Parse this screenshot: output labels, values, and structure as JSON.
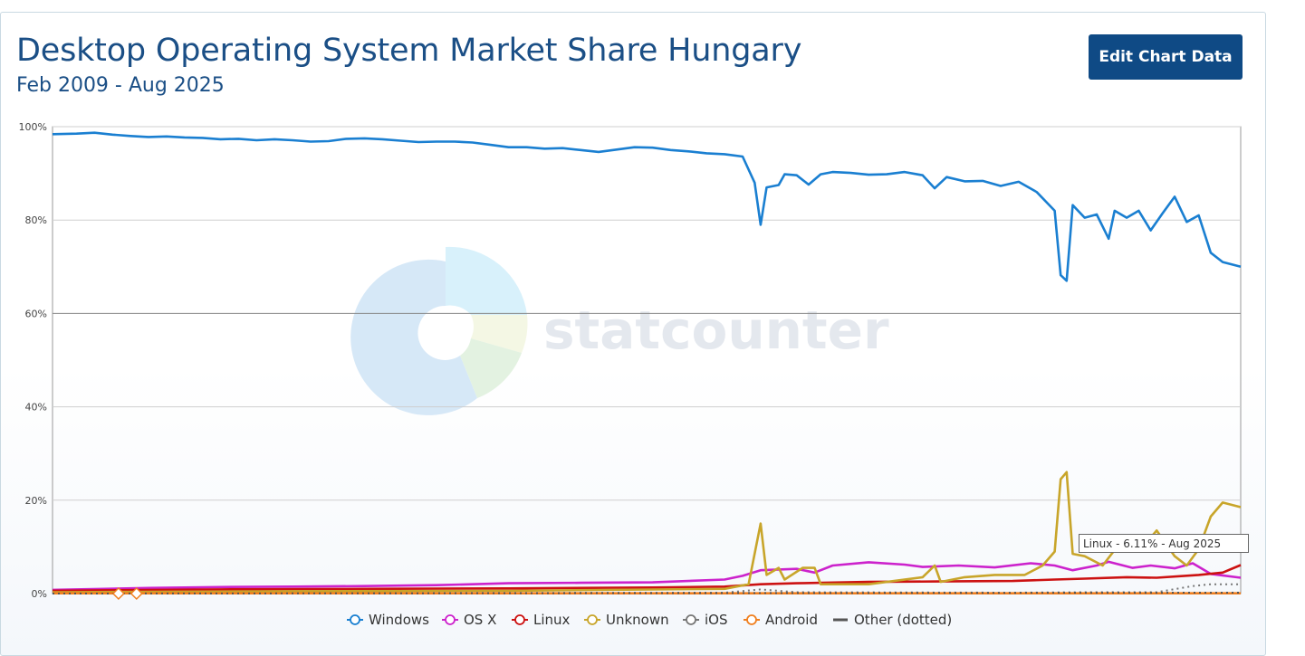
{
  "header": {
    "title": "Desktop Operating System Market Share Hungary",
    "subtitle": "Feb 2009 - Aug 2025",
    "edit_button_label": "Edit Chart Data"
  },
  "watermark": {
    "text": "statcounter"
  },
  "tooltip": {
    "text": "Linux - 6.11% - Aug 2025"
  },
  "chart_data": {
    "type": "line",
    "title": "Desktop Operating System Market Share Hungary",
    "subtitle": "Feb 2009 - Aug 2025",
    "x_range": [
      "2009-02",
      "2025-08"
    ],
    "ylim": [
      0,
      100
    ],
    "y_ticks": [
      "0%",
      "20%",
      "40%",
      "60%",
      "80%",
      "100%"
    ],
    "y_tick_values": [
      0,
      20,
      40,
      60,
      80,
      100
    ],
    "grid": "horizontal",
    "legend_position": "bottom",
    "series": [
      {
        "name": "Windows",
        "color": "#1a7fd1",
        "style": "solid",
        "points": [
          [
            "2009-02",
            98.4
          ],
          [
            "2009-06",
            98.5
          ],
          [
            "2009-09",
            98.7
          ],
          [
            "2009-12",
            98.3
          ],
          [
            "2010-03",
            98.0
          ],
          [
            "2010-06",
            97.8
          ],
          [
            "2010-09",
            97.9
          ],
          [
            "2010-12",
            97.7
          ],
          [
            "2011-03",
            97.6
          ],
          [
            "2011-06",
            97.3
          ],
          [
            "2011-09",
            97.4
          ],
          [
            "2011-12",
            97.1
          ],
          [
            "2012-03",
            97.3
          ],
          [
            "2012-06",
            97.1
          ],
          [
            "2012-09",
            96.8
          ],
          [
            "2012-12",
            96.9
          ],
          [
            "2013-03",
            97.4
          ],
          [
            "2013-06",
            97.5
          ],
          [
            "2013-09",
            97.3
          ],
          [
            "2013-12",
            97.0
          ],
          [
            "2014-03",
            96.7
          ],
          [
            "2014-06",
            96.8
          ],
          [
            "2014-09",
            96.8
          ],
          [
            "2014-12",
            96.6
          ],
          [
            "2015-03",
            96.1
          ],
          [
            "2015-06",
            95.6
          ],
          [
            "2015-09",
            95.6
          ],
          [
            "2015-12",
            95.3
          ],
          [
            "2016-03",
            95.4
          ],
          [
            "2016-06",
            95.0
          ],
          [
            "2016-09",
            94.6
          ],
          [
            "2016-12",
            95.1
          ],
          [
            "2017-03",
            95.6
          ],
          [
            "2017-06",
            95.5
          ],
          [
            "2017-09",
            95.0
          ],
          [
            "2017-12",
            94.7
          ],
          [
            "2018-03",
            94.3
          ],
          [
            "2018-06",
            94.1
          ],
          [
            "2018-09",
            93.6
          ],
          [
            "2018-11",
            88.0
          ],
          [
            "2018-12",
            79.0
          ],
          [
            "2019-01",
            87.0
          ],
          [
            "2019-03",
            87.5
          ],
          [
            "2019-04",
            89.8
          ],
          [
            "2019-06",
            89.6
          ],
          [
            "2019-08",
            87.6
          ],
          [
            "2019-10",
            89.8
          ],
          [
            "2019-12",
            90.3
          ],
          [
            "2020-03",
            90.1
          ],
          [
            "2020-06",
            89.7
          ],
          [
            "2020-09",
            89.8
          ],
          [
            "2020-12",
            90.3
          ],
          [
            "2021-03",
            89.6
          ],
          [
            "2021-05",
            86.8
          ],
          [
            "2021-07",
            89.2
          ],
          [
            "2021-10",
            88.3
          ],
          [
            "2022-01",
            88.4
          ],
          [
            "2022-04",
            87.3
          ],
          [
            "2022-07",
            88.2
          ],
          [
            "2022-10",
            86.0
          ],
          [
            "2023-01",
            82.0
          ],
          [
            "2023-02",
            68.2
          ],
          [
            "2023-03",
            67.0
          ],
          [
            "2023-04",
            83.2
          ],
          [
            "2023-06",
            80.5
          ],
          [
            "2023-08",
            81.2
          ],
          [
            "2023-10",
            76.0
          ],
          [
            "2023-11",
            82.0
          ],
          [
            "2024-01",
            80.5
          ],
          [
            "2024-03",
            82.0
          ],
          [
            "2024-05",
            77.8
          ],
          [
            "2024-07",
            81.5
          ],
          [
            "2024-09",
            85.0
          ],
          [
            "2024-11",
            79.6
          ],
          [
            "2025-01",
            81.0
          ],
          [
            "2025-03",
            73.0
          ],
          [
            "2025-05",
            71.0
          ],
          [
            "2025-08",
            70.0
          ]
        ]
      },
      {
        "name": "OS X",
        "color": "#cc22cc",
        "style": "solid",
        "points": [
          [
            "2009-02",
            0.8
          ],
          [
            "2010-06",
            1.2
          ],
          [
            "2011-06",
            1.4
          ],
          [
            "2012-06",
            1.5
          ],
          [
            "2013-06",
            1.6
          ],
          [
            "2014-06",
            1.8
          ],
          [
            "2015-06",
            2.2
          ],
          [
            "2016-06",
            2.3
          ],
          [
            "2017-06",
            2.4
          ],
          [
            "2018-06",
            3.0
          ],
          [
            "2018-09",
            3.8
          ],
          [
            "2018-12",
            5.0
          ],
          [
            "2019-06",
            5.3
          ],
          [
            "2019-09",
            4.5
          ],
          [
            "2019-12",
            6.0
          ],
          [
            "2020-06",
            6.7
          ],
          [
            "2020-12",
            6.2
          ],
          [
            "2021-03",
            5.7
          ],
          [
            "2021-09",
            6.0
          ],
          [
            "2022-03",
            5.6
          ],
          [
            "2022-09",
            6.5
          ],
          [
            "2023-01",
            6.0
          ],
          [
            "2023-04",
            5.0
          ],
          [
            "2023-08",
            6.0
          ],
          [
            "2023-10",
            6.8
          ],
          [
            "2024-02",
            5.5
          ],
          [
            "2024-05",
            6.0
          ],
          [
            "2024-09",
            5.4
          ],
          [
            "2024-12",
            6.5
          ],
          [
            "2025-03",
            4.2
          ],
          [
            "2025-08",
            3.4
          ]
        ]
      },
      {
        "name": "Linux",
        "color": "#cc1111",
        "style": "solid",
        "points": [
          [
            "2009-02",
            0.6
          ],
          [
            "2011-06",
            0.9
          ],
          [
            "2013-06",
            1.0
          ],
          [
            "2015-06",
            1.1
          ],
          [
            "2017-06",
            1.3
          ],
          [
            "2018-06",
            1.5
          ],
          [
            "2018-12",
            2.0
          ],
          [
            "2019-06",
            2.2
          ],
          [
            "2020-06",
            2.5
          ],
          [
            "2021-06",
            2.6
          ],
          [
            "2022-06",
            2.7
          ],
          [
            "2023-01",
            3.0
          ],
          [
            "2023-06",
            3.2
          ],
          [
            "2024-01",
            3.5
          ],
          [
            "2024-06",
            3.4
          ],
          [
            "2025-01",
            4.0
          ],
          [
            "2025-05",
            4.5
          ],
          [
            "2025-08",
            6.11
          ]
        ]
      },
      {
        "name": "Unknown",
        "color": "#c8a52a",
        "style": "solid",
        "points": [
          [
            "2009-02",
            0.3
          ],
          [
            "2012-06",
            0.5
          ],
          [
            "2015-06",
            0.6
          ],
          [
            "2018-06",
            1.0
          ],
          [
            "2018-10",
            2.0
          ],
          [
            "2018-12",
            15.0
          ],
          [
            "2019-01",
            4.0
          ],
          [
            "2019-03",
            5.5
          ],
          [
            "2019-04",
            3.0
          ],
          [
            "2019-07",
            5.5
          ],
          [
            "2019-09",
            5.5
          ],
          [
            "2019-10",
            2.0
          ],
          [
            "2020-06",
            2.0
          ],
          [
            "2021-03",
            3.5
          ],
          [
            "2021-05",
            6.0
          ],
          [
            "2021-06",
            2.5
          ],
          [
            "2021-10",
            3.5
          ],
          [
            "2022-03",
            4.0
          ],
          [
            "2022-08",
            4.0
          ],
          [
            "2022-11",
            6.0
          ],
          [
            "2023-01",
            9.0
          ],
          [
            "2023-02",
            24.5
          ],
          [
            "2023-03",
            26.0
          ],
          [
            "2023-04",
            8.5
          ],
          [
            "2023-06",
            8.0
          ],
          [
            "2023-09",
            6.0
          ],
          [
            "2023-12",
            11.0
          ],
          [
            "2024-03",
            9.0
          ],
          [
            "2024-06",
            13.5
          ],
          [
            "2024-09",
            8.0
          ],
          [
            "2024-11",
            6.0
          ],
          [
            "2025-01",
            9.5
          ],
          [
            "2025-03",
            16.5
          ],
          [
            "2025-05",
            19.5
          ],
          [
            "2025-08",
            18.5
          ]
        ]
      },
      {
        "name": "iOS",
        "color": "#777777",
        "style": "dotted",
        "points": [
          [
            "2009-02",
            0.1
          ],
          [
            "2012-06",
            0.1
          ],
          [
            "2018-06",
            0.2
          ],
          [
            "2018-12",
            0.9
          ],
          [
            "2019-06",
            0.3
          ],
          [
            "2022-06",
            0.2
          ],
          [
            "2023-06",
            0.3
          ],
          [
            "2024-06",
            0.3
          ],
          [
            "2024-12",
            1.6
          ],
          [
            "2025-03",
            2.0
          ],
          [
            "2025-08",
            2.0
          ]
        ]
      },
      {
        "name": "Android",
        "color": "#f07f1f",
        "style": "solid",
        "points": [
          [
            "2009-02",
            0.05
          ],
          [
            "2025-08",
            0.05
          ]
        ]
      },
      {
        "name": "Other (dotted)",
        "color": "#555555",
        "style": "dotted",
        "points": [
          [
            "2009-02",
            0.0
          ],
          [
            "2025-08",
            0.2
          ]
        ]
      }
    ]
  },
  "legend": {
    "items": [
      {
        "label": "Windows",
        "color": "#1a7fd1",
        "marker": "circle"
      },
      {
        "label": "OS X",
        "color": "#cc22cc",
        "marker": "circle"
      },
      {
        "label": "Linux",
        "color": "#cc1111",
        "marker": "circle"
      },
      {
        "label": "Unknown",
        "color": "#c8a52a",
        "marker": "circle"
      },
      {
        "label": "iOS",
        "color": "#777777",
        "marker": "circle"
      },
      {
        "label": "Android",
        "color": "#f07f1f",
        "marker": "circle"
      },
      {
        "label": "Other (dotted)",
        "color": "#555555",
        "marker": "line"
      }
    ]
  }
}
